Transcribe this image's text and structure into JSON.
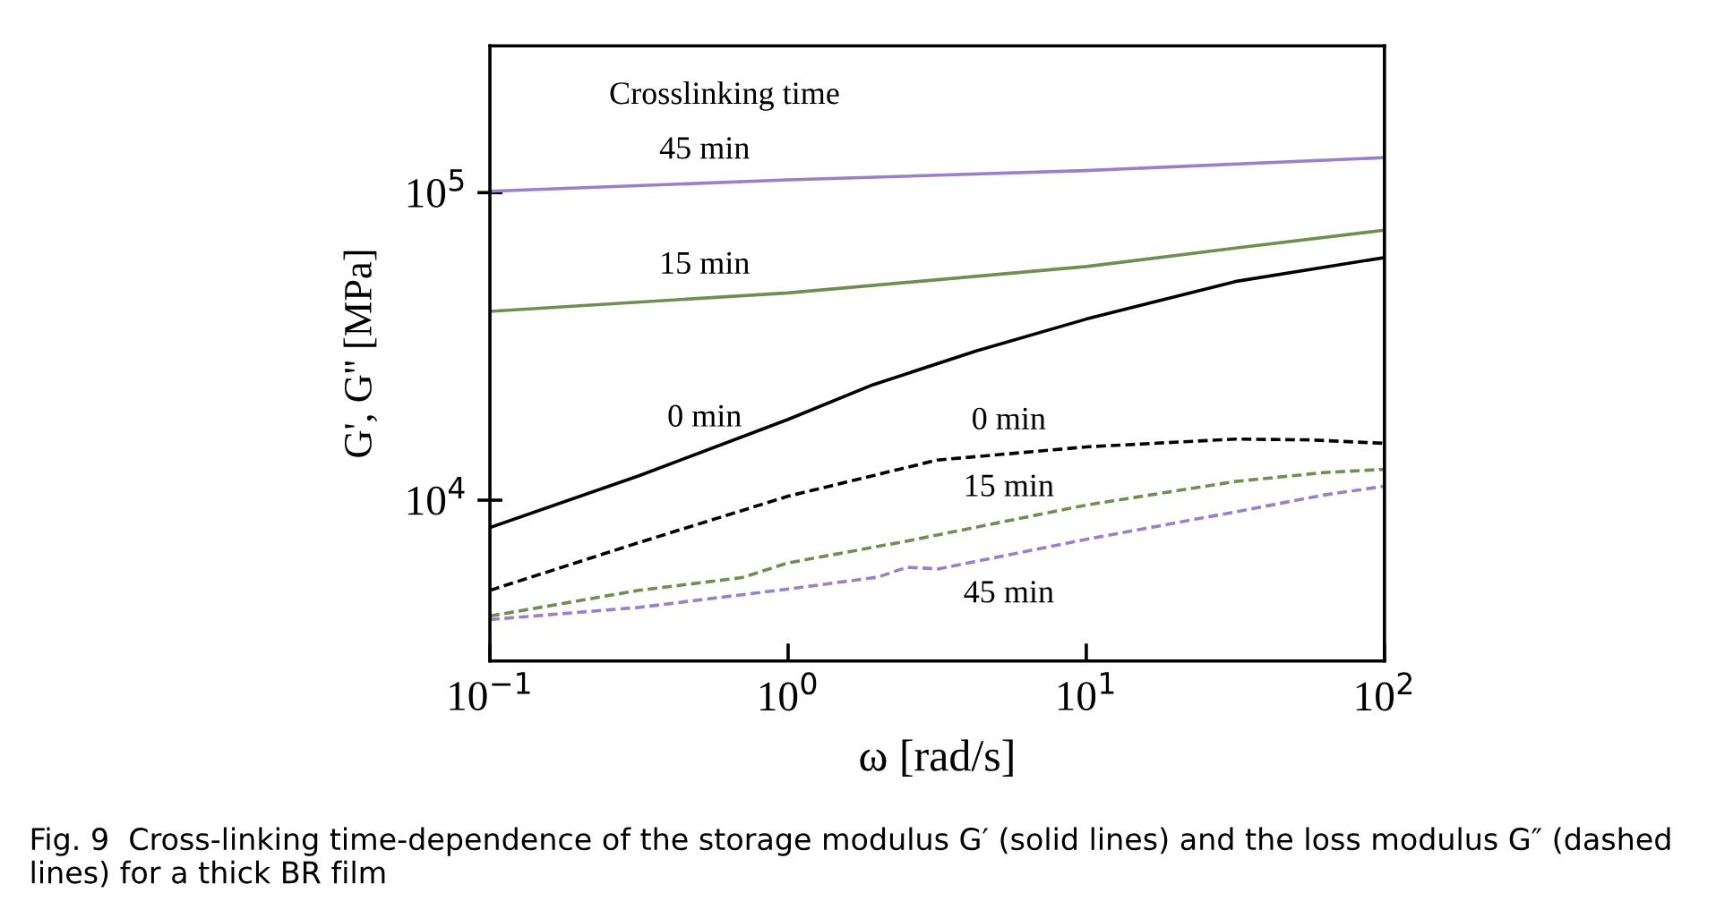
{
  "chart_data": {
    "type": "line",
    "xlabel": "ω [rad/s]",
    "ylabel": "G', G'' [MPa]",
    "log": "xy",
    "xlim": [
      0.1,
      100
    ],
    "ylim": [
      3000,
      300000
    ],
    "xticks": [
      {
        "value": 0.1,
        "label": "10$^{−1}$"
      },
      {
        "value": 1,
        "label": "10$^{0}$"
      },
      {
        "value": 10,
        "label": "10$^{1}$"
      },
      {
        "value": 100,
        "label": "10$^{2}$"
      }
    ],
    "yticks": [
      {
        "value": 10000,
        "label": "10$^{4}$"
      },
      {
        "value": 100000,
        "label": "10$^{5}$"
      }
    ],
    "grid": false,
    "legend": false,
    "marker": "none",
    "series": [
      {
        "name": "45 min",
        "color": "#9b7fc9",
        "line_style": "solid",
        "x": [
          0.1,
          1,
          10,
          100
        ],
        "values": [
          101000,
          110000,
          118000,
          130000
        ]
      },
      {
        "name": "15 min",
        "color": "#6f8f50",
        "line_style": "solid",
        "x": [
          0.1,
          1,
          10,
          31.6,
          100
        ],
        "values": [
          41100,
          47200,
          57500,
          66000,
          75500
        ]
      },
      {
        "name": "0 min",
        "color": "#000000",
        "line_style": "solid",
        "x": [
          0.1,
          0.316,
          1,
          1.92,
          4.25,
          10,
          31.6,
          100
        ],
        "values": [
          8150,
          12000,
          18300,
          23700,
          30500,
          38800,
          51400,
          61500
        ]
      },
      {
        "name": "0 min",
        "color": "#000000",
        "line_style": "dashed",
        "x": [
          0.1,
          0.316,
          1,
          3.16,
          10,
          31.6,
          56,
          100
        ],
        "values": [
          5090,
          7280,
          10300,
          13500,
          14900,
          15800,
          15700,
          15300
        ]
      },
      {
        "name": "15 min",
        "color": "#6f8f50",
        "line_style": "dashed",
        "x": [
          0.1,
          0.316,
          0.7,
          1,
          2.5,
          10,
          31.6,
          63,
          100
        ],
        "values": [
          4200,
          5090,
          5600,
          6250,
          7360,
          9640,
          11500,
          12300,
          12600
        ]
      },
      {
        "name": "45 min",
        "color": "#9b7fc9",
        "line_style": "dashed",
        "x": [
          0.1,
          0.316,
          1,
          2.0,
          2.5,
          3.2,
          10,
          31.6,
          63,
          100
        ],
        "values": [
          4090,
          4480,
          5140,
          5620,
          6050,
          5980,
          7460,
          9160,
          10400,
          11100
        ]
      }
    ],
    "legend_title": "Crosslinking time",
    "annotations": [
      "Fig. 9  Cross-linking time-dependence of the storage modulus G′ (solid lines) and the loss modulus G″ (dashed lines) for a thick BR film"
    ]
  }
}
